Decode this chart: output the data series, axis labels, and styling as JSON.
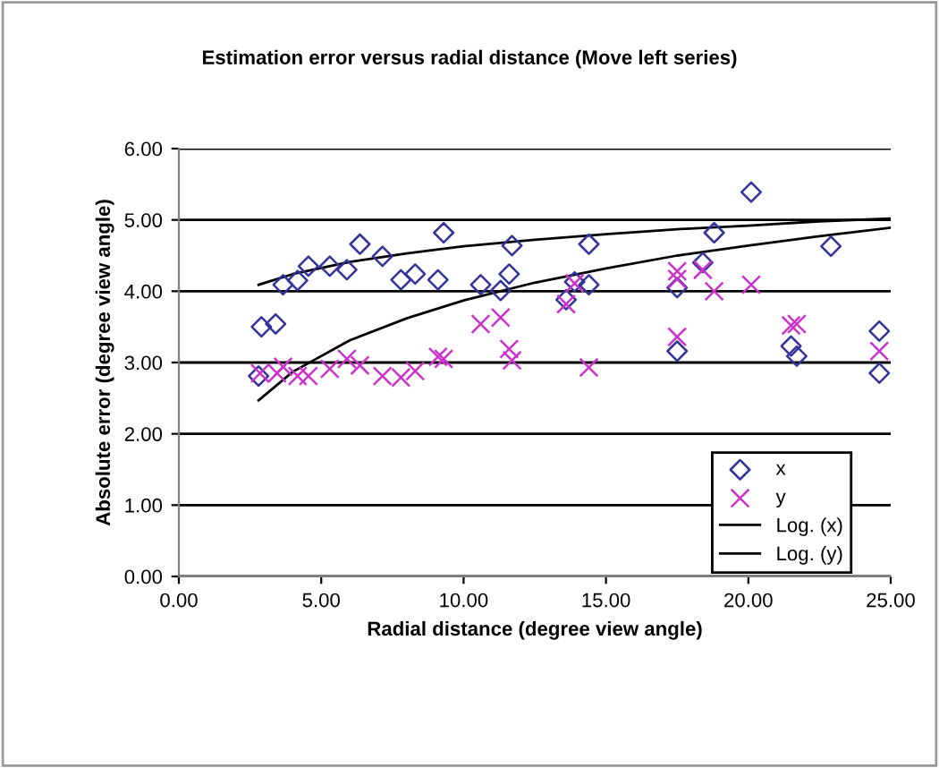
{
  "chart_data": {
    "type": "scatter",
    "title": "Estimation error versus radial distance (Move left series)",
    "xlabel": "Radial distance (degree view angle)",
    "ylabel": "Absolute error (degree view angle)",
    "xlim": [
      0,
      25
    ],
    "ylim": [
      0,
      6
    ],
    "xticks": [
      {
        "value": 0,
        "label": "0.00"
      },
      {
        "value": 5,
        "label": "5.00"
      },
      {
        "value": 10,
        "label": "10.00"
      },
      {
        "value": 15,
        "label": "15.00"
      },
      {
        "value": 20,
        "label": "20.00"
      },
      {
        "value": 25,
        "label": "25.00"
      }
    ],
    "yticks": [
      {
        "value": 0,
        "label": "0.00"
      },
      {
        "value": 1,
        "label": "1.00"
      },
      {
        "value": 2,
        "label": "2.00"
      },
      {
        "value": 3,
        "label": "3.00"
      },
      {
        "value": 4,
        "label": "4.00"
      },
      {
        "value": 5,
        "label": "5.00"
      },
      {
        "value": 6,
        "label": "6.00"
      }
    ],
    "grid": "y",
    "legend": "bottom right",
    "series": [
      {
        "name": "x",
        "marker": "diamond",
        "color": "#333399",
        "x": [
          2.8,
          2.9,
          3.4,
          3.66,
          4.17,
          4.55,
          5.3,
          5.9,
          6.36,
          7.15,
          7.8,
          8.3,
          9.1,
          9.3,
          10.6,
          11.3,
          11.6,
          11.7,
          13.6,
          13.9,
          14.4,
          14.4,
          17.5,
          17.5,
          18.4,
          18.8,
          20.1,
          21.5,
          21.7,
          22.9,
          24.6,
          24.6
        ],
        "values": [
          2.81,
          3.5,
          3.54,
          4.09,
          4.15,
          4.35,
          4.35,
          4.3,
          4.66,
          4.49,
          4.16,
          4.24,
          4.16,
          4.82,
          4.09,
          4.01,
          4.24,
          4.64,
          3.88,
          4.13,
          4.66,
          4.09,
          4.05,
          3.16,
          4.4,
          4.82,
          5.39,
          3.23,
          3.09,
          4.63,
          3.44,
          2.85
        ]
      },
      {
        "name": "y",
        "marker": "cross",
        "color": "#cc33cc",
        "x": [
          2.85,
          3.45,
          3.66,
          4.17,
          4.55,
          5.3,
          5.9,
          6.36,
          7.15,
          7.8,
          8.3,
          9.1,
          9.3,
          10.6,
          11.3,
          11.6,
          11.7,
          13.6,
          13.9,
          14.4,
          17.5,
          17.5,
          17.5,
          18.4,
          18.8,
          20.1,
          21.5,
          21.7,
          24.6
        ],
        "values": [
          2.85,
          2.85,
          2.94,
          2.81,
          2.81,
          2.91,
          3.05,
          2.96,
          2.81,
          2.79,
          2.88,
          3.08,
          3.05,
          3.54,
          3.63,
          3.19,
          3.03,
          3.82,
          4.11,
          2.93,
          4.28,
          4.17,
          3.36,
          4.3,
          4.0,
          4.09,
          3.52,
          3.54,
          3.16
        ]
      },
      {
        "name": "Log. (x)",
        "type": "line",
        "marker": "none",
        "line_style": "solid",
        "color": "#000000",
        "x": [
          2.8,
          4,
          6,
          8,
          10,
          12.5,
          15,
          17.5,
          20,
          22.5,
          25
        ],
        "values": [
          4.09,
          4.24,
          4.41,
          4.53,
          4.63,
          4.72,
          4.8,
          4.87,
          4.92,
          4.98,
          5.02
        ]
      },
      {
        "name": "Log. (y)",
        "type": "line",
        "marker": "none",
        "line_style": "solid",
        "color": "#000000",
        "x": [
          2.8,
          4,
          6,
          8,
          10,
          12.5,
          15,
          17.5,
          20,
          22.5,
          25
        ],
        "values": [
          2.47,
          2.87,
          3.31,
          3.62,
          3.87,
          4.12,
          4.32,
          4.5,
          4.64,
          4.77,
          4.89
        ]
      }
    ]
  }
}
